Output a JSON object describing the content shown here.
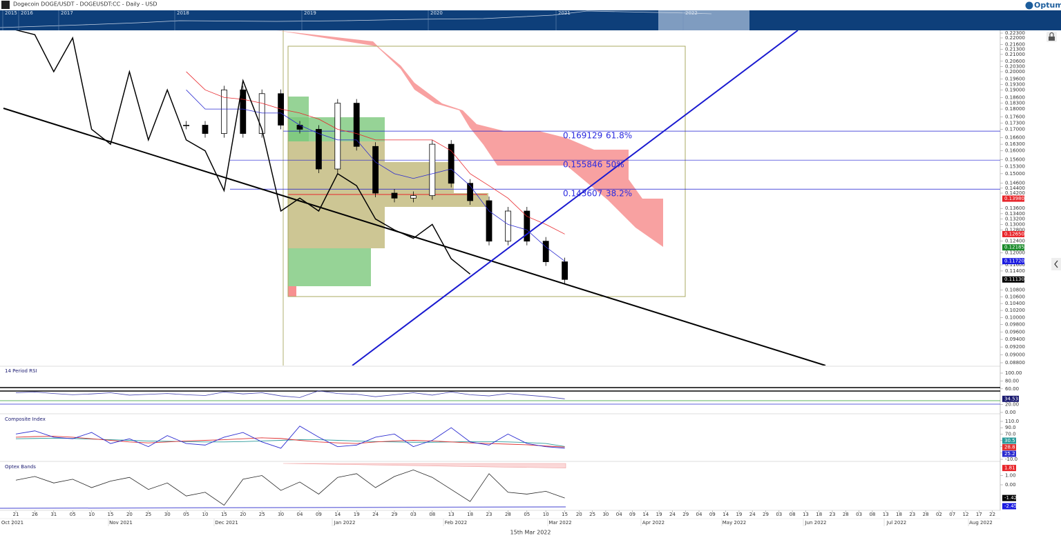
{
  "header": {
    "title": "Dogecoin DOGE/USDT - DOGEUSDT:CC - Daily - USD",
    "brand": "Optuma"
  },
  "navigator": {
    "years": [
      "2015",
      "2016",
      "2017",
      "2018",
      "2019",
      "2020",
      "2021",
      "2022"
    ]
  },
  "price_panel": {
    "log_scale": true,
    "ylim": [
      0.088,
      0.223
    ],
    "yticks": [
      {
        "value": 0.223,
        "label": "0.22300"
      },
      {
        "value": 0.22,
        "label": "0.22000"
      },
      {
        "value": 0.216,
        "label": "0.21600"
      },
      {
        "value": 0.213,
        "label": "0.21300"
      },
      {
        "value": 0.21,
        "label": "0.21000"
      },
      {
        "value": 0.206,
        "label": "0.20600"
      },
      {
        "value": 0.203,
        "label": "0.20300"
      },
      {
        "value": 0.2,
        "label": "0.20000"
      },
      {
        "value": 0.196,
        "label": "0.19600"
      },
      {
        "value": 0.193,
        "label": "0.19300"
      },
      {
        "value": 0.19,
        "label": "0.19000"
      },
      {
        "value": 0.186,
        "label": "0.18600"
      },
      {
        "value": 0.183,
        "label": "0.18300"
      },
      {
        "value": 0.18,
        "label": "0.18000"
      },
      {
        "value": 0.176,
        "label": "0.17600"
      },
      {
        "value": 0.173,
        "label": "0.17300"
      },
      {
        "value": 0.17,
        "label": "0.17000"
      },
      {
        "value": 0.166,
        "label": "0.16600"
      },
      {
        "value": 0.163,
        "label": "0.16300"
      },
      {
        "value": 0.16,
        "label": "0.16000"
      },
      {
        "value": 0.156,
        "label": "0.15600"
      },
      {
        "value": 0.153,
        "label": "0.15300"
      },
      {
        "value": 0.15,
        "label": "0.15000"
      },
      {
        "value": 0.146,
        "label": "0.14600"
      },
      {
        "value": 0.144,
        "label": "0.14400"
      },
      {
        "value": 0.142,
        "label": "0.14200"
      },
      {
        "value": 0.136,
        "label": "0.13600"
      },
      {
        "value": 0.134,
        "label": "0.13400"
      },
      {
        "value": 0.132,
        "label": "0.13200"
      },
      {
        "value": 0.13,
        "label": "0.13000"
      },
      {
        "value": 0.128,
        "label": "0.12800"
      },
      {
        "value": 0.124,
        "label": "0.12400"
      },
      {
        "value": 0.12,
        "label": "0.12000"
      },
      {
        "value": 0.116,
        "label": "0.11600"
      },
      {
        "value": 0.114,
        "label": "0.11400"
      },
      {
        "value": 0.108,
        "label": "0.10800"
      },
      {
        "value": 0.106,
        "label": "0.10600"
      },
      {
        "value": 0.104,
        "label": "0.10400"
      },
      {
        "value": 0.102,
        "label": "0.10200"
      },
      {
        "value": 0.1,
        "label": "0.10000"
      },
      {
        "value": 0.098,
        "label": "0.09800"
      },
      {
        "value": 0.096,
        "label": "0.09600"
      },
      {
        "value": 0.094,
        "label": "0.09400"
      },
      {
        "value": 0.092,
        "label": "0.09200"
      },
      {
        "value": 0.09,
        "label": "0.09000"
      },
      {
        "value": 0.088,
        "label": "0.08800"
      }
    ],
    "fib_levels": [
      {
        "price": 0.169129,
        "ratio": "61.8%"
      },
      {
        "price": 0.155846,
        "ratio": "50%"
      },
      {
        "price": 0.143607,
        "ratio": "38.2%"
      }
    ],
    "price_tags": [
      {
        "value": 0.1398,
        "label": "0.13980",
        "color": "#e8252a"
      },
      {
        "value": 0.1265,
        "label": "0.12650",
        "color": "#e8252a"
      },
      {
        "value": 0.12185,
        "label": "0.12185",
        "color": "#1a8a2a"
      },
      {
        "value": 0.1172,
        "label": "0.11720",
        "color": "#1a1ae0"
      },
      {
        "value": 0.1113,
        "label": "0.11130",
        "color": "#000000"
      }
    ],
    "close": [
      0.172,
      0.168,
      0.19,
      0.168,
      0.188,
      0.172,
      0.17,
      0.152,
      0.183,
      0.162,
      0.142,
      0.14,
      0.141,
      0.163,
      0.146,
      0.139,
      0.124,
      0.135,
      0.124,
      0.117,
      0.1113
    ],
    "series": [
      {
        "color": "#e8252a",
        "values": [
          0.2,
          0.19,
          0.186,
          0.185,
          0.183,
          0.18,
          0.178,
          0.175,
          0.17,
          0.168,
          0.165,
          0.165,
          0.165,
          0.165,
          0.16,
          0.15,
          0.145,
          0.14,
          0.133,
          0.13,
          0.1265
        ]
      },
      {
        "color": "#2a2ad0",
        "values": [
          0.19,
          0.18,
          0.18,
          0.18,
          0.178,
          0.178,
          0.172,
          0.168,
          0.165,
          0.165,
          0.155,
          0.15,
          0.148,
          0.15,
          0.152,
          0.145,
          0.135,
          0.13,
          0.128,
          0.122,
          0.1172
        ]
      }
    ],
    "lagging_line": [
      0.225,
      0.222,
      0.2,
      0.22,
      0.17,
      0.163,
      0.2,
      0.165,
      0.19,
      0.165,
      0.16,
      0.143,
      0.195,
      0.17,
      0.135,
      0.14,
      0.135,
      0.15,
      0.145,
      0.132,
      0.128,
      0.125,
      0.13,
      0.118,
      0.113
    ]
  },
  "rsi": {
    "title": "14 Period RSI",
    "ylim": [
      0,
      100
    ],
    "yticks": [
      {
        "value": 100,
        "label": "100.00"
      },
      {
        "value": 80,
        "label": "80.00"
      },
      {
        "value": 60,
        "label": "60.00"
      },
      {
        "value": 20,
        "label": "20.00"
      },
      {
        "value": 0,
        "label": "0.00"
      }
    ],
    "color": "#4040b0",
    "values": [
      50,
      52,
      48,
      45,
      47,
      50,
      44,
      46,
      48,
      45,
      43,
      52,
      47,
      50,
      42,
      38,
      55,
      48,
      46,
      40,
      45,
      50,
      44,
      52,
      45,
      42,
      48,
      44,
      40,
      34.53
    ],
    "tag": 34.53
  },
  "composite": {
    "title": "Composite Index",
    "ylim": [
      -10,
      110
    ],
    "yticks": [
      {
        "value": 110,
        "label": "110.0"
      },
      {
        "value": 90,
        "label": "90.0"
      },
      {
        "value": 70,
        "label": "70.0"
      },
      {
        "value": 50,
        "label": "50.0"
      },
      {
        "value": 30,
        "label": "30.0"
      },
      {
        "value": 10,
        "label": "10.0"
      },
      {
        "value": -10,
        "label": "-10.0"
      }
    ],
    "series": [
      {
        "color": "#2a9a9a",
        "values": [
          55,
          56,
          57,
          56,
          54,
          52,
          50,
          48,
          47,
          46,
          45,
          45,
          46,
          48,
          50,
          52,
          52,
          50,
          48,
          46,
          45,
          44,
          44,
          45,
          46,
          46,
          45,
          43,
          40,
          30.5
        ]
      },
      {
        "color": "#e03030",
        "values": [
          60,
          62,
          63,
          60,
          55,
          50,
          45,
          42,
          45,
          48,
          50,
          52,
          55,
          58,
          56,
          50,
          45,
          42,
          40,
          45,
          48,
          50,
          48,
          45,
          42,
          40,
          38,
          36,
          32,
          28.8
        ]
      },
      {
        "color": "#2a2ad0",
        "values": [
          70,
          80,
          60,
          55,
          75,
          40,
          55,
          30,
          65,
          40,
          35,
          60,
          75,
          45,
          25,
          95,
          60,
          30,
          35,
          60,
          70,
          30,
          50,
          90,
          45,
          35,
          70,
          40,
          30,
          25.2
        ]
      }
    ],
    "tags": [
      {
        "value": 30.5,
        "color": "#2a9a9a"
      },
      {
        "value": 28.8,
        "color": "#e03030"
      },
      {
        "value": 25.2,
        "color": "#2a2ad0"
      }
    ]
  },
  "optex": {
    "title": "Optex Bands",
    "ylim": [
      -2.6,
      2.3
    ],
    "yticks": [
      {
        "value": 1,
        "label": "1.00"
      },
      {
        "value": 0,
        "label": "0.00"
      }
    ],
    "color": "#222222",
    "values": [
      0.5,
      0.9,
      0.2,
      0.6,
      -0.3,
      0.4,
      0.8,
      -0.5,
      0.2,
      -1.2,
      -0.8,
      -2.2,
      0.6,
      1.0,
      -0.6,
      0.3,
      -1.0,
      0.8,
      1.2,
      -0.3,
      0.9,
      1.6,
      0.8,
      -0.5,
      -1.8,
      1.2,
      -0.8,
      -1.0,
      -0.7,
      -1.42
    ],
    "band_top": [
      2.3,
      2.2,
      2.1,
      2.0,
      1.9,
      1.81
    ],
    "tags": [
      {
        "value": 1.81,
        "color": "#e8252a"
      },
      {
        "value": -1.42,
        "color": "#000000"
      },
      {
        "value": -2.45,
        "color": "#1a1ae0"
      }
    ]
  },
  "x_axis": {
    "days": [
      "21",
      "26",
      "31",
      "05",
      "10",
      "15",
      "20",
      "25",
      "30",
      "05",
      "10",
      "15",
      "20",
      "25",
      "30",
      "04",
      "09",
      "14",
      "19",
      "24",
      "29",
      "03",
      "08",
      "13",
      "18",
      "23",
      "28",
      "05",
      "10",
      "15",
      "20",
      "25",
      "30",
      "04",
      "09",
      "14",
      "19",
      "24",
      "29",
      "04",
      "09",
      "14",
      "19",
      "24",
      "29",
      "03",
      "08",
      "13",
      "18",
      "23",
      "28",
      "03",
      "08",
      "13",
      "18",
      "23",
      "28",
      "02",
      "07",
      "12",
      "17",
      "22"
    ],
    "months": [
      "Oct 2021",
      "Nov 2021",
      "Dec 2021",
      "Jan 2022",
      "Feb 2022",
      "Mar 2022",
      "Apr 2022",
      "May 2022",
      "Jun 2022",
      "Jul 2022",
      "Aug 2022"
    ],
    "cursor_date": "15th Mar 2022"
  }
}
